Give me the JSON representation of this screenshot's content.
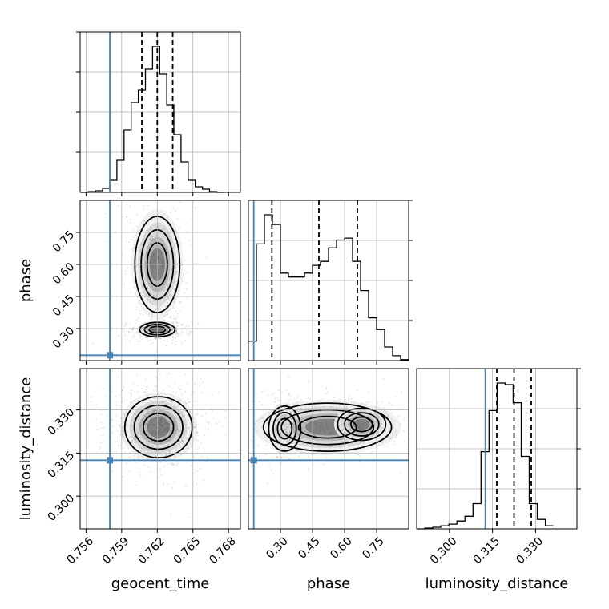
{
  "chart_data": {
    "type": "corner",
    "parameters": [
      "geocent_time",
      "phase",
      "luminosity_distance"
    ],
    "axis_ranges": {
      "geocent_time": [
        0.7555,
        0.769
      ],
      "phase": [
        0.15,
        0.9
      ],
      "luminosity_distance": [
        0.2886,
        0.3444
      ]
    },
    "ticks": {
      "geocent_time": [
        "0.756",
        "0.759",
        "0.762",
        "0.765",
        "0.768"
      ],
      "phase": [
        "0.30",
        "0.45",
        "0.60",
        "0.75"
      ],
      "luminosity_distance_y": [
        "0.300",
        "0.315",
        "0.330"
      ],
      "luminosity_distance_x": [
        "0.300",
        "0.315",
        "0.330"
      ]
    },
    "truths": {
      "geocent_time": 0.758,
      "phase": 0.175,
      "luminosity_distance": 0.3125
    },
    "quantiles": {
      "geocent_time": [
        0.7607,
        0.762,
        0.7633
      ],
      "phase": [
        0.26,
        0.48,
        0.66
      ],
      "luminosity_distance": [
        0.3165,
        0.3225,
        0.3285
      ]
    },
    "histograms": {
      "geocent_time": {
        "bin_start": 0.7556,
        "bin_width": 0.0006,
        "counts": [
          0,
          1,
          2,
          5,
          15,
          40,
          78,
          112,
          128,
          154,
          182,
          148,
          109,
          72,
          38,
          15,
          7,
          4,
          1,
          0
        ]
      },
      "phase": {
        "bin_start": 0.15,
        "bin_width": 0.0375,
        "counts": [
          20,
          120,
          150,
          140,
          90,
          86,
          86,
          90,
          98,
          102,
          116,
          124,
          126,
          102,
          72,
          44,
          32,
          14,
          5,
          1
        ]
      },
      "luminosity_distance": {
        "bin_start": 0.2886,
        "bin_width": 0.0028,
        "counts": [
          0,
          1,
          2,
          4,
          6,
          10,
          16,
          32,
          98,
          150,
          185,
          183,
          160,
          92,
          32,
          12,
          4
        ]
      }
    },
    "pairs": [
      {
        "x": "geocent_time",
        "y": "phase"
      },
      {
        "x": "geocent_time",
        "y": "luminosity_distance"
      },
      {
        "x": "phase",
        "y": "luminosity_distance"
      }
    ]
  }
}
